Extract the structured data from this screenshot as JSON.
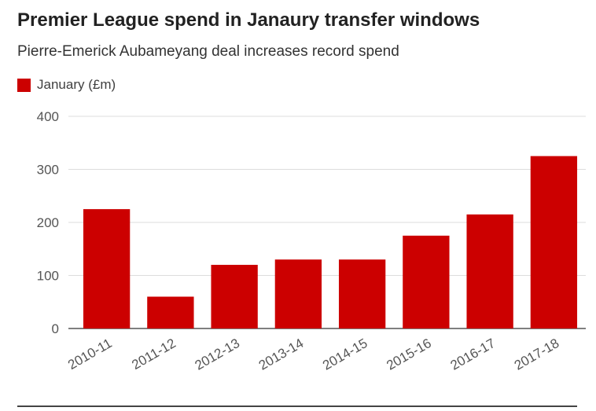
{
  "colors": {
    "bar": "#cc0000",
    "grid": "#dddddd",
    "axis": "#555555",
    "tick_text": "#555555"
  },
  "chart_data": {
    "type": "bar",
    "title": "Premier League spend in Janaury transfer windows",
    "subtitle": "Pierre-Emerick Aubameyang deal increases record spend",
    "legend": {
      "placement": "top-left",
      "entries": [
        "January (£m)"
      ]
    },
    "categories": [
      "2010-11",
      "2011-12",
      "2012-13",
      "2013-14",
      "2014-15",
      "2015-16",
      "2016-17",
      "2017-18"
    ],
    "series": [
      {
        "name": "January (£m)",
        "values": [
          225,
          60,
          120,
          130,
          130,
          175,
          215,
          325
        ]
      }
    ],
    "yticks": [
      "0",
      "100",
      "200",
      "300",
      "400"
    ],
    "ylim": [
      0,
      400
    ],
    "grid": true
  }
}
